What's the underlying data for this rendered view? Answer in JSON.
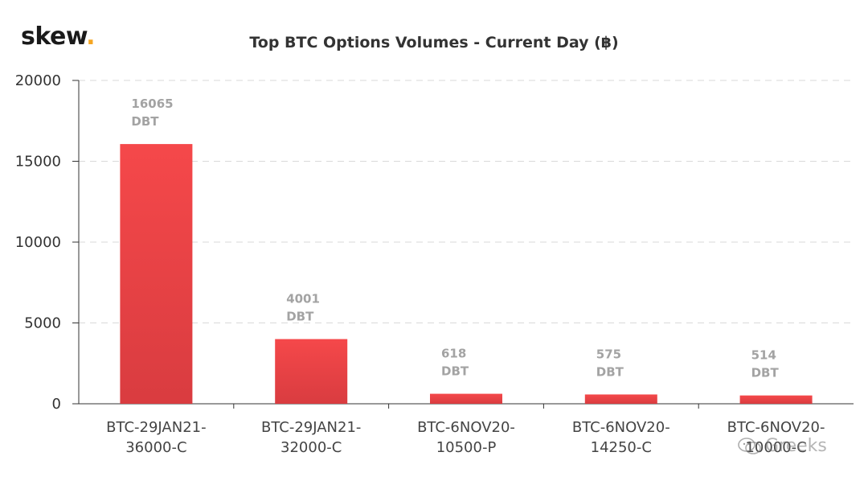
{
  "logo": {
    "text": "skew",
    "dot": "."
  },
  "watermark": {
    "text": "Greeks",
    "icon": "wechat-icon"
  },
  "colors": {
    "bar_top": "#f5484a",
    "bar_bottom": "#d93c40",
    "grid": "#d9d9d9",
    "axis": "#333333"
  },
  "chart_data": {
    "type": "bar",
    "title": "Top BTC Options Volumes - Current Day (฿)",
    "categories": [
      [
        "BTC-29JAN21-",
        "36000-C"
      ],
      [
        "BTC-29JAN21-",
        "32000-C"
      ],
      [
        "BTC-6NOV20-",
        "10500-P"
      ],
      [
        "BTC-6NOV20-",
        "14250-C"
      ],
      [
        "BTC-6NOV20-",
        "10000-C"
      ]
    ],
    "values": [
      16065,
      4001,
      618,
      575,
      514
    ],
    "value_unit": "DBT",
    "yticks": [
      0,
      5000,
      10000,
      15000,
      20000
    ],
    "ylim": [
      0,
      20000
    ],
    "grid": true,
    "legend": "none"
  }
}
